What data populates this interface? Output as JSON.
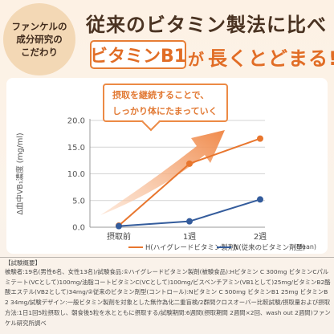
{
  "badge": {
    "lines": [
      "ファンケルの",
      "成分研究の",
      "こだわり"
    ]
  },
  "headline": {
    "line1": "従来のビタミン製法に比べ",
    "vitamin_box": "ビタミンB1",
    "particle": "が",
    "emphasis": "長くとどまる!"
  },
  "callout": {
    "line1": "摂取を継続することで、",
    "line2": "しっかり体にたまっていく"
  },
  "chart_data": {
    "type": "line",
    "categories": [
      "摂取前",
      "1週",
      "2週"
    ],
    "ylabel": "Δ血中VB₁濃度 (mg/ml)",
    "ylim": [
      0,
      20
    ],
    "yticks": [
      "0.0",
      "5.0",
      "10.0",
      "15.0",
      "20.0"
    ],
    "grid": true,
    "series": [
      {
        "name": "H(ハイグレードビタミン製剤)",
        "color": "#e8762e",
        "values": [
          0.3,
          11.9,
          16.6
        ]
      },
      {
        "name": "N(従来のビタミン剤型)",
        "color": "#345c9c",
        "values": [
          0.2,
          1.1,
          5.2
        ]
      }
    ],
    "legend_note": "(Mean)",
    "arrow_color": "#f08a4b"
  },
  "footnote": {
    "title": "【試験概要】",
    "body": "被験者:19名(男性6名、女性13名)/試験食品:①ハイグレードビタミン製剤(被験食品):Hビタミン C 300mg ビタミンCパルミテート(VCとして)100mg/油脂コートビタミンC(VCとして)100mg/ビスベンチアミン(VB1として)25mg/ビタミンB2酪酸エステル(VB2として)34mg/②従来のビタミン剤型(コントロール):Nビタミン C 500mg ビタミンB1 25mg ビタミンB2 34mg/試験デザイン:一般ビタミン製剤を対象とした無作為化二重盲検/2群間クロスオーバー比較試験/摂取量および摂取方法:1日1回5粒摂取し、朝食後5粒を水とともに摂取する/試験期間:6週間(摂取期間 2週間×2回、wash out 2週間)ファンケル研究所調べ"
  }
}
